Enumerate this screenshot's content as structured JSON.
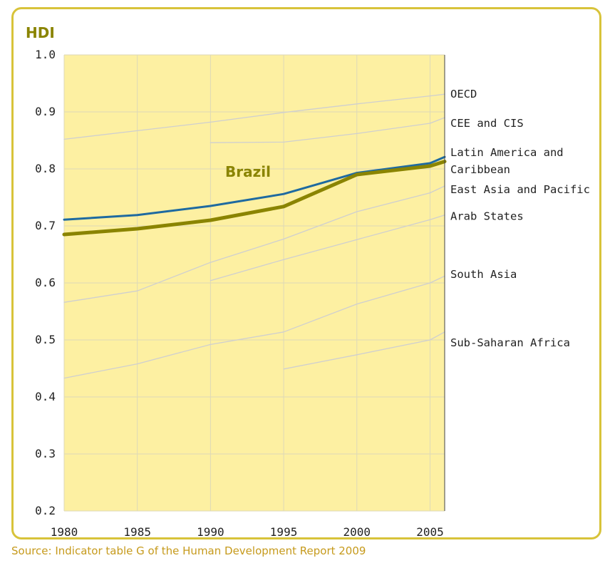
{
  "chart_data": {
    "type": "line",
    "ylabel": "HDI",
    "ylim": [
      0.2,
      1.0
    ],
    "y_ticks": [
      "0.2",
      "0.3",
      "0.4",
      "0.5",
      "0.6",
      "0.7",
      "0.8",
      "0.9",
      "1.0"
    ],
    "xlim": [
      1980,
      2006
    ],
    "x_ticks": [
      "1980",
      "1985",
      "1990",
      "1995",
      "2000",
      "2005"
    ],
    "grid": true,
    "highlight_label": "Brazil",
    "series": [
      {
        "name": "OECD",
        "x": [
          1980,
          1985,
          1990,
          1995,
          2000,
          2005,
          2006
        ],
        "y": [
          0.852,
          0.867,
          0.882,
          0.899,
          0.914,
          0.928,
          0.931
        ],
        "color": "#cfcfcf"
      },
      {
        "name": "CEE and CIS",
        "x": [
          1990,
          1995,
          2000,
          2005,
          2006
        ],
        "y": [
          0.846,
          0.847,
          0.862,
          0.88,
          0.89
        ],
        "color": "#cfcfcf"
      },
      {
        "name": "East Asia and Pacific",
        "x": [
          1980,
          1985,
          1990,
          1995,
          2000,
          2005,
          2006
        ],
        "y": [
          0.566,
          0.586,
          0.636,
          0.677,
          0.725,
          0.758,
          0.77
        ],
        "color": "#cfcfcf"
      },
      {
        "name": "Arab States",
        "x": [
          1990,
          1995,
          2000,
          2005,
          2006
        ],
        "y": [
          0.604,
          0.641,
          0.676,
          0.711,
          0.719
        ],
        "color": "#cfcfcf"
      },
      {
        "name": "South Asia",
        "x": [
          1980,
          1985,
          1990,
          1995,
          2000,
          2005,
          2006
        ],
        "y": [
          0.433,
          0.458,
          0.492,
          0.514,
          0.563,
          0.6,
          0.612
        ],
        "color": "#cfcfcf"
      },
      {
        "name": "Sub-Saharan Africa",
        "x": [
          1995,
          2000,
          2005,
          2006
        ],
        "y": [
          0.449,
          0.474,
          0.5,
          0.514
        ],
        "color": "#cfcfcf"
      },
      {
        "name": "Latin America and Caribbean",
        "x": [
          1980,
          1985,
          1990,
          1995,
          2000,
          2005,
          2006
        ],
        "y": [
          0.711,
          0.719,
          0.735,
          0.756,
          0.793,
          0.81,
          0.821
        ],
        "color": "#1e6aa0"
      },
      {
        "name": "Brazil",
        "x": [
          1980,
          1985,
          1990,
          1995,
          2000,
          2005,
          2006
        ],
        "y": [
          0.685,
          0.695,
          0.71,
          0.734,
          0.79,
          0.805,
          0.813
        ],
        "color": "#8a8400"
      }
    ],
    "legend_labels": [
      {
        "text": "OECD",
        "y": 0.931
      },
      {
        "text": "CEE and CIS",
        "y": 0.88
      },
      {
        "text": "Latin America and",
        "y": 0.829
      },
      {
        "text": "Caribbean",
        "y": 0.799
      },
      {
        "text": "East Asia and Pacific",
        "y": 0.764
      },
      {
        "text": "Arab States",
        "y": 0.717
      },
      {
        "text": "South Asia",
        "y": 0.615
      },
      {
        "text": "Sub-Saharan Africa",
        "y": 0.495
      }
    ]
  },
  "source": "Source: Indicator table G of the Human Development Report 2009"
}
